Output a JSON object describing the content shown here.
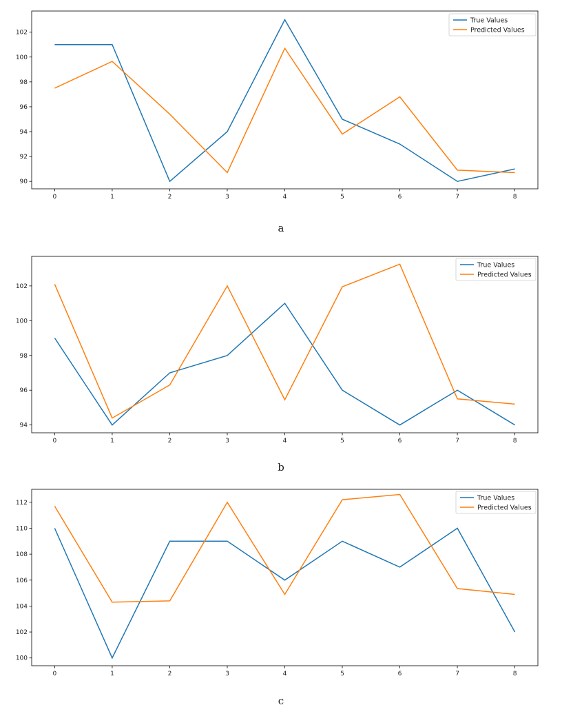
{
  "figure": {
    "colors": {
      "true": "#1f77b4",
      "predicted": "#ff7f0e"
    }
  },
  "chart_data": [
    {
      "type": "line",
      "panel_label": "a",
      "x": [
        0,
        1,
        2,
        3,
        4,
        5,
        6,
        7,
        8
      ],
      "xticks": [
        "0",
        "1",
        "2",
        "3",
        "4",
        "5",
        "6",
        "7",
        "8"
      ],
      "xlim": [
        -0.4,
        8.4
      ],
      "ylim": [
        89.4,
        103.7
      ],
      "yticks": [
        90,
        92,
        94,
        96,
        98,
        100,
        102
      ],
      "ytick_labels": [
        "90",
        "92",
        "94",
        "96",
        "98",
        "100",
        "102"
      ],
      "legend": "top-right",
      "grid": false,
      "series": [
        {
          "name": "True Values",
          "color": "#1f77b4",
          "values": [
            101,
            101,
            90,
            94,
            103,
            95,
            93,
            90,
            91
          ]
        },
        {
          "name": "Predicted Values",
          "color": "#ff7f0e",
          "values": [
            97.5,
            99.65,
            95.4,
            90.7,
            100.7,
            93.8,
            96.8,
            90.9,
            90.7
          ]
        }
      ]
    },
    {
      "type": "line",
      "panel_label": "b",
      "x": [
        0,
        1,
        2,
        3,
        4,
        5,
        6,
        7,
        8
      ],
      "xticks": [
        "0",
        "1",
        "2",
        "3",
        "4",
        "5",
        "6",
        "7",
        "8"
      ],
      "xlim": [
        -0.4,
        8.4
      ],
      "ylim": [
        93.55,
        103.7
      ],
      "yticks": [
        94,
        96,
        98,
        100,
        102
      ],
      "ytick_labels": [
        "94",
        "96",
        "98",
        "100",
        "102"
      ],
      "legend": "top-right",
      "grid": false,
      "series": [
        {
          "name": "True Values",
          "color": "#1f77b4",
          "values": [
            99,
            94,
            97,
            98,
            101,
            96,
            94,
            96,
            94
          ]
        },
        {
          "name": "Predicted Values",
          "color": "#ff7f0e",
          "values": [
            102.1,
            94.4,
            96.3,
            102,
            95.45,
            101.95,
            103.25,
            95.5,
            95.2
          ]
        }
      ]
    },
    {
      "type": "line",
      "panel_label": "c",
      "x": [
        0,
        1,
        2,
        3,
        4,
        5,
        6,
        7,
        8
      ],
      "xticks": [
        "0",
        "1",
        "2",
        "3",
        "4",
        "5",
        "6",
        "7",
        "8"
      ],
      "xlim": [
        -0.4,
        8.4
      ],
      "ylim": [
        99.4,
        113.0
      ],
      "yticks": [
        100,
        102,
        104,
        106,
        108,
        110,
        112
      ],
      "ytick_labels": [
        "100",
        "102",
        "104",
        "106",
        "108",
        "110",
        "112"
      ],
      "legend": "top-right",
      "grid": false,
      "series": [
        {
          "name": "True Values",
          "color": "#1f77b4",
          "values": [
            110,
            100,
            109,
            109,
            106,
            109,
            107,
            110,
            102
          ]
        },
        {
          "name": "Predicted Values",
          "color": "#ff7f0e",
          "values": [
            111.7,
            104.3,
            104.4,
            112,
            104.9,
            112.2,
            112.6,
            105.35,
            104.9
          ]
        }
      ]
    }
  ]
}
